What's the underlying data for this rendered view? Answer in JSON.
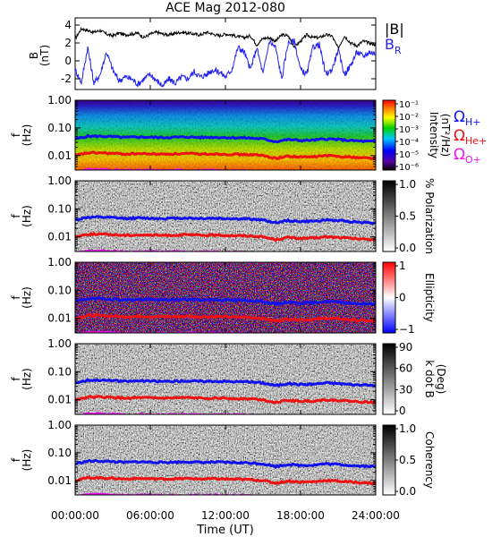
{
  "title": "ACE Mag 2012-080",
  "time_axis": {
    "label": "Time (UT)",
    "ticks": [
      "00:00:00",
      "06:00:00",
      "12:00:00",
      "18:00:00",
      "24:00:00"
    ],
    "range_hours": [
      0,
      24
    ]
  },
  "legend": {
    "B_total": {
      "label": "|B|",
      "color": "#000000"
    },
    "B_R": {
      "label": "B",
      "sub": "R",
      "color": "#2222ee"
    },
    "gyro": [
      {
        "symbol": "Ω",
        "sub": "H+",
        "color": "#1111ee"
      },
      {
        "symbol": "Ω",
        "sub": "He+",
        "color": "#ee1111"
      },
      {
        "symbol": "Ω",
        "sub": "O+",
        "color": "#ee11ee"
      }
    ]
  },
  "chart_data": [
    {
      "type": "line",
      "panel": "field",
      "ylabel": "B",
      "yunit": "(nT)",
      "ylim": [
        -3.2,
        4.8
      ],
      "yticks": [
        "4",
        "2",
        "0",
        "-2"
      ],
      "x_hours": [
        0,
        0.5,
        1,
        1.5,
        2,
        2.5,
        3,
        3.5,
        4,
        4.5,
        5,
        5.5,
        6,
        6.5,
        7,
        7.5,
        8,
        8.5,
        9,
        9.5,
        10,
        10.5,
        11,
        11.5,
        12,
        12.5,
        13,
        13.5,
        14,
        14.5,
        15,
        15.5,
        16,
        16.5,
        17,
        17.5,
        18,
        18.5,
        19,
        19.5,
        20,
        20.5,
        21,
        21.5,
        22,
        22.5,
        23,
        23.5,
        24
      ],
      "series": [
        {
          "name": "|B|",
          "color": "#000000",
          "values": [
            2.5,
            3.6,
            3.4,
            3.2,
            3.4,
            3.0,
            2.8,
            3.1,
            2.9,
            3.0,
            3.1,
            2.6,
            3.0,
            3.2,
            3.0,
            2.9,
            3.1,
            3.2,
            3.1,
            3.0,
            2.9,
            3.2,
            3.0,
            2.8,
            3.0,
            2.9,
            2.7,
            2.6,
            2.8,
            1.8,
            2.5,
            2.6,
            2.2,
            2.9,
            2.8,
            1.6,
            2.2,
            2.9,
            2.6,
            2.6,
            2.9,
            2.8,
            1.4,
            2.8,
            2.0,
            1.7,
            2.2,
            2.0,
            1.8
          ]
        },
        {
          "name": "B_R",
          "color": "#2222ee",
          "values": [
            -1.0,
            -2.4,
            1.5,
            -2.5,
            -1.5,
            1.0,
            -1.0,
            -2.2,
            -1.8,
            -2.0,
            -2.6,
            -2.0,
            -1.5,
            -2.2,
            -2.8,
            -2.0,
            -2.5,
            -1.8,
            -2.0,
            -1.2,
            -1.8,
            -1.5,
            -1.0,
            -1.2,
            -1.8,
            -1.0,
            1.5,
            1.0,
            -1.0,
            1.5,
            -1.5,
            2.2,
            1.5,
            -2.0,
            2.0,
            2.2,
            -1.0,
            -1.5,
            1.6,
            1.8,
            -1.5,
            -1.0,
            1.2,
            -1.5,
            -0.5,
            1.0,
            0.5,
            1.0,
            0.8
          ]
        }
      ]
    },
    {
      "type": "heatmap",
      "panel": "power",
      "ylabel": "f",
      "yunit": "(Hz)",
      "yscale": "log",
      "ylim": [
        0.003,
        1.0
      ],
      "yticks": [
        "1.00",
        "0.10",
        "0.01"
      ],
      "colorbar": {
        "label": "Intensity",
        "unit": "(nT²/Hz)",
        "ticks": [
          "10⁻¹",
          "10⁻²",
          "10⁻³",
          "10⁻⁴",
          "10⁻⁵",
          "10⁻⁶"
        ],
        "colormap": "rainbow"
      }
    },
    {
      "type": "heatmap",
      "panel": "polarization",
      "ylabel": "f",
      "yunit": "(Hz)",
      "yscale": "log",
      "colorbar": {
        "label": "% Polarization",
        "ticks": [
          "1.0",
          "0.5",
          "0.0"
        ],
        "colormap": "gray"
      }
    },
    {
      "type": "heatmap",
      "panel": "ellipticity",
      "ylabel": "f",
      "yunit": "(Hz)",
      "yscale": "log",
      "colorbar": {
        "label": "Ellipticity",
        "ticks": [
          "1",
          "0",
          "−1"
        ],
        "colormap": "blue-white-red"
      }
    },
    {
      "type": "heatmap",
      "panel": "kdotb",
      "ylabel": "f",
      "yunit": "(Hz)",
      "yscale": "log",
      "colorbar": {
        "label": "k dot B",
        "unit": "(Deg)",
        "ticks": [
          "90",
          "60",
          "30",
          "0"
        ],
        "colormap": "gray"
      }
    },
    {
      "type": "heatmap",
      "panel": "coherency",
      "ylabel": "f",
      "yunit": "(Hz)",
      "yscale": "log",
      "colorbar": {
        "label": "Coherency",
        "ticks": [
          "1.0",
          "0.5",
          "0.0"
        ],
        "colormap": "gray"
      }
    },
    {
      "type": "line",
      "panel": "gyrofrequency overlays (all spectral panels)",
      "x_hours": [
        0,
        1,
        2,
        3,
        4,
        5,
        6,
        7,
        8,
        9,
        10,
        11,
        12,
        13,
        14,
        15,
        16,
        17,
        18,
        19,
        20,
        21,
        22,
        23,
        24
      ],
      "series": [
        {
          "name": "H+",
          "color": "#1111ee",
          "values": [
            0.04,
            0.05,
            0.05,
            0.048,
            0.045,
            0.047,
            0.046,
            0.045,
            0.046,
            0.047,
            0.045,
            0.046,
            0.045,
            0.044,
            0.043,
            0.04,
            0.032,
            0.038,
            0.035,
            0.036,
            0.04,
            0.038,
            0.035,
            0.033,
            0.032
          ]
        },
        {
          "name": "He+",
          "color": "#ee1111",
          "values": [
            0.01,
            0.0125,
            0.0125,
            0.012,
            0.0113,
            0.0118,
            0.0115,
            0.0113,
            0.0115,
            0.0118,
            0.0113,
            0.0115,
            0.0113,
            0.011,
            0.0108,
            0.01,
            0.008,
            0.0095,
            0.0088,
            0.009,
            0.01,
            0.0095,
            0.0088,
            0.0083,
            0.008
          ]
        },
        {
          "name": "O+",
          "color": "#ee11ee",
          "values": [
            0.0025,
            0.0031,
            0.0031,
            0.003,
            0.0028,
            0.0029,
            0.0029,
            0.0028,
            0.0029,
            0.0029,
            0.0028,
            0.0029,
            0.0028,
            0.0028,
            0.0027,
            0.0025,
            0.002,
            0.0024,
            0.0022,
            0.0023,
            0.0025,
            0.0024,
            0.0022,
            0.0021,
            0.002
          ]
        }
      ]
    }
  ]
}
